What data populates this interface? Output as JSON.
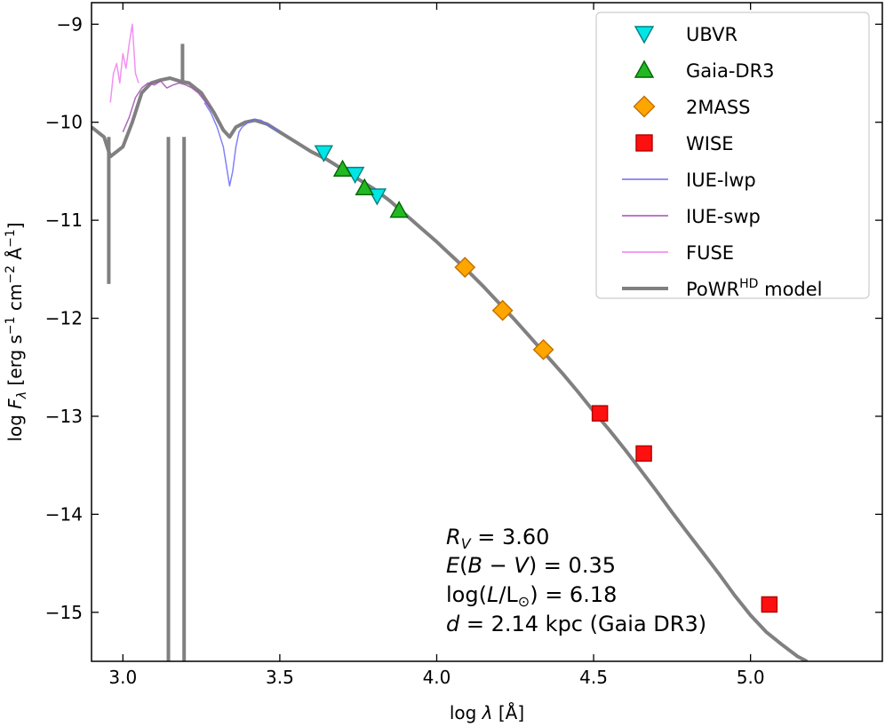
{
  "chart_data": {
    "type": "line",
    "xlabel": "log λ [Å]",
    "ylabel": "log F_λ [erg s⁻¹ cm⁻² Å⁻¹]",
    "xlim": [
      2.9,
      5.42
    ],
    "ylim": [
      -15.5,
      -8.78
    ],
    "xticks": [
      "3.0",
      "3.5",
      "4.0",
      "4.5",
      "5.0"
    ],
    "xtick_values": [
      3.0,
      3.5,
      4.0,
      4.5,
      5.0
    ],
    "yticks": [
      "−9",
      "−10",
      "−11",
      "−12",
      "−13",
      "−14",
      "−15"
    ],
    "ytick_values": [
      -9,
      -10,
      -11,
      -12,
      -13,
      -14,
      -15
    ],
    "grid": false,
    "legend_position": "top-right",
    "series": [
      {
        "name": "PoWR^HD model",
        "legend_main": "PoWR",
        "legend_sup": "HD",
        "legend_tail": " model",
        "kind": "line",
        "color": "#808080",
        "x": [
          2.9,
          2.94,
          2.96,
          2.98,
          3.0,
          3.03,
          3.06,
          3.09,
          3.12,
          3.15,
          3.18,
          3.21,
          3.25,
          3.29,
          3.32,
          3.34,
          3.36,
          3.39,
          3.42,
          3.46,
          3.5,
          3.55,
          3.6,
          3.65,
          3.7,
          3.75,
          3.8,
          3.85,
          3.9,
          3.95,
          4.0,
          4.05,
          4.1,
          4.15,
          4.2,
          4.25,
          4.3,
          4.35,
          4.4,
          4.45,
          4.5,
          4.55,
          4.6,
          4.65,
          4.7,
          4.75,
          4.8,
          4.85,
          4.9,
          4.95,
          5.0,
          5.05,
          5.1,
          5.15,
          5.18
        ],
        "y": [
          -10.05,
          -10.15,
          -10.35,
          -10.3,
          -10.25,
          -10.0,
          -9.7,
          -9.6,
          -9.57,
          -9.55,
          -9.58,
          -9.6,
          -9.7,
          -9.9,
          -10.08,
          -10.15,
          -10.05,
          -10.0,
          -9.98,
          -10.02,
          -10.1,
          -10.2,
          -10.3,
          -10.38,
          -10.48,
          -10.58,
          -10.68,
          -10.8,
          -10.94,
          -11.08,
          -11.22,
          -11.37,
          -11.52,
          -11.68,
          -11.85,
          -12.02,
          -12.2,
          -12.38,
          -12.56,
          -12.75,
          -12.95,
          -13.14,
          -13.34,
          -13.55,
          -13.76,
          -13.98,
          -14.19,
          -14.4,
          -14.61,
          -14.83,
          -15.03,
          -15.2,
          -15.33,
          -15.45,
          -15.5
        ],
        "dips": [
          {
            "x": 2.955,
            "y": -11.65
          },
          {
            "x": 3.145,
            "y": -15.5
          },
          {
            "x": 3.195,
            "y": -15.5
          }
        ],
        "spike": {
          "x": 3.19,
          "y": -9.2
        }
      },
      {
        "name": "IUE-lwp",
        "kind": "line",
        "color": "#6b6bf5",
        "x": [
          3.26,
          3.28,
          3.3,
          3.32,
          3.33,
          3.34,
          3.35,
          3.36,
          3.37,
          3.38,
          3.4,
          3.42,
          3.44,
          3.46,
          3.48,
          3.5
        ],
        "y": [
          -9.8,
          -9.9,
          -10.05,
          -10.25,
          -10.45,
          -10.65,
          -10.5,
          -10.25,
          -10.1,
          -10.05,
          -10.0,
          -9.97,
          -9.98,
          -10.02,
          -10.06,
          -10.1
        ]
      },
      {
        "name": "IUE-swp",
        "kind": "line",
        "color": "#a050b0",
        "x": [
          3.0,
          3.02,
          3.04,
          3.06,
          3.08,
          3.1,
          3.12,
          3.14,
          3.16,
          3.18,
          3.2,
          3.22,
          3.24,
          3.26,
          3.28
        ],
        "y": [
          -10.1,
          -9.95,
          -9.75,
          -9.65,
          -9.6,
          -9.62,
          -9.58,
          -9.65,
          -9.62,
          -9.6,
          -9.62,
          -9.65,
          -9.7,
          -9.78,
          -9.86
        ]
      },
      {
        "name": "FUSE",
        "kind": "line",
        "color": "#f07ef0",
        "x": [
          2.96,
          2.97,
          2.98,
          2.99,
          3.0,
          3.01,
          3.02,
          3.03,
          3.04,
          3.05
        ],
        "y": [
          -9.8,
          -9.5,
          -9.4,
          -9.6,
          -9.3,
          -9.45,
          -9.2,
          -9.0,
          -9.5,
          -9.6
        ]
      },
      {
        "name": "UBVR",
        "kind": "scatter",
        "marker": "triangle-down",
        "color": "#00e5e5",
        "x": [
          3.64,
          3.74,
          3.81
        ],
        "y": [
          -10.31,
          -10.53,
          -10.75
        ]
      },
      {
        "name": "Gaia-DR3",
        "kind": "scatter",
        "marker": "triangle-up",
        "color": "#22b822",
        "x": [
          3.7,
          3.77,
          3.88
        ],
        "y": [
          -10.48,
          -10.67,
          -10.9
        ]
      },
      {
        "name": "2MASS",
        "kind": "scatter",
        "marker": "diamond",
        "color": "#ffa500",
        "x": [
          4.09,
          4.21,
          4.34
        ],
        "y": [
          -11.48,
          -11.92,
          -12.32
        ]
      },
      {
        "name": "WISE",
        "kind": "scatter",
        "marker": "square",
        "color": "#ff1010",
        "x": [
          4.52,
          4.66,
          5.06
        ],
        "y": [
          -12.97,
          -13.38,
          -14.92
        ]
      }
    ],
    "legend_order": [
      "UBVR",
      "Gaia-DR3",
      "2MASS",
      "WISE",
      "IUE-lwp",
      "IUE-swp",
      "FUSE",
      "PoWR^HD model"
    ],
    "annotations": {
      "rv": "R_V = 3.60",
      "ebv": "E(B − V) = 0.35",
      "lum": "log(L/L_⊙) = 6.18",
      "dist": "d = 2.14 kpc (Gaia DR3)"
    }
  }
}
